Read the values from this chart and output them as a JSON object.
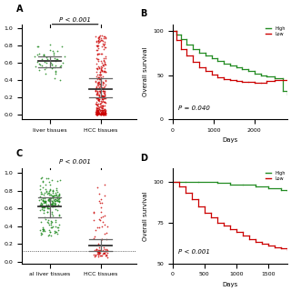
{
  "panel_A": {
    "label": "A",
    "group1_label": "liver tissues",
    "group2_label": "HCC tissues",
    "pvalue": "P < 0.001",
    "color1": "#228B22",
    "color2": "#CC0000",
    "g1_n": 50,
    "g1_mean": 0.62,
    "g1_std": 0.08,
    "g1_med": 0.62,
    "g1_q1": 0.55,
    "g1_q3": 0.68,
    "g2_n": 350,
    "g2_med": 0.3,
    "g2_q1": 0.2,
    "g2_q3": 0.42
  },
  "panel_B": {
    "label": "B",
    "ylabel": "Overall survival",
    "xlabel": "Days",
    "pvalue": "P = 0.040",
    "color_high": "#228B22",
    "color_low": "#CC0000",
    "xlim": [
      0,
      2800
    ],
    "ylim": [
      0,
      100
    ],
    "xticks": [
      0,
      1000,
      2000
    ],
    "yticks": [
      0,
      50,
      100
    ]
  },
  "panel_C": {
    "label": "C",
    "group1_label": "al liver tissues",
    "group2_label": "HCC tissues",
    "pvalue": "P < 0.001",
    "color1": "#228B22",
    "color2": "#CC0000",
    "g1_n": 200,
    "g1_med": 0.62,
    "g1_q1": 0.5,
    "g1_q3": 0.72,
    "g2_n": 80,
    "g2_med": 0.18,
    "g2_q1": 0.12,
    "g2_q3": 0.25,
    "dotted_y": 0.12
  },
  "panel_D": {
    "label": "D",
    "ylabel": "Overall survival",
    "xlabel": "Days",
    "pvalue": "P < 0.001",
    "color_high": "#228B22",
    "color_low": "#CC0000",
    "xlim": [
      0,
      1800
    ],
    "ylim": [
      50,
      100
    ],
    "xticks": [
      0,
      500,
      1000,
      1500
    ],
    "yticks": [
      50,
      75,
      100
    ]
  }
}
